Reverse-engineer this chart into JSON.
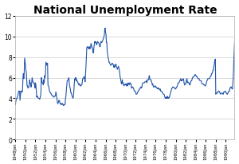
{
  "title": "National Unemployment Rate",
  "title_fontsize": 10,
  "line_color": "#2255AA",
  "line_width": 0.8,
  "background_color": "#ffffff",
  "plot_bg_color": "#ffffff",
  "ylim": [
    0,
    12
  ],
  "yticks": [
    0,
    2,
    4,
    6,
    8,
    10,
    12
  ],
  "gridcolor": "#cccccc",
  "start_year": 1948,
  "x_tick_every": 24,
  "unemployment": [
    3.4,
    3.7,
    3.9,
    4.0,
    4.0,
    4.2,
    4.3,
    4.5,
    4.7,
    4.7,
    4.7,
    3.8,
    4.3,
    4.7,
    4.6,
    4.7,
    4.6,
    4.7,
    5.9,
    6.4,
    5.9,
    6.4,
    7.9,
    7.6,
    7.3,
    6.7,
    6.6,
    5.8,
    5.2,
    5.2,
    5.0,
    5.0,
    5.1,
    5.3,
    5.8,
    5.5,
    5.5,
    5.1,
    5.1,
    5.5,
    6.0,
    5.8,
    5.6,
    5.5,
    5.5,
    5.5,
    5.2,
    5.0,
    5.5,
    5.3,
    4.8,
    4.1,
    4.2,
    4.2,
    4.1,
    4.0,
    4.0,
    4.0,
    3.9,
    4.0,
    4.2,
    4.4,
    6.0,
    5.9,
    5.5,
    5.5,
    5.4,
    5.3,
    5.8,
    5.5,
    6.2,
    6.0,
    6.4,
    7.5,
    7.2,
    7.4,
    7.3,
    7.4,
    5.3,
    5.2,
    5.1,
    4.8,
    4.7,
    4.6,
    4.5,
    4.5,
    4.4,
    4.3,
    4.3,
    4.2,
    4.2,
    4.2,
    4.1,
    4.2,
    4.2,
    4.2,
    4.3,
    4.6,
    4.4,
    4.1,
    3.8,
    3.5,
    3.5,
    3.6,
    3.8,
    3.8,
    3.7,
    3.5,
    3.4,
    3.5,
    3.5,
    3.4,
    3.4,
    3.5,
    3.4,
    3.3,
    3.3,
    3.4,
    3.4,
    3.4,
    4.0,
    4.2,
    4.8,
    5.2,
    5.7,
    5.7,
    5.8,
    5.9,
    6.0,
    5.5,
    5.2,
    5.0,
    4.8,
    4.5,
    4.5,
    4.3,
    4.2,
    4.1,
    4.0,
    4.2,
    4.7,
    5.4,
    5.9,
    5.8,
    6.0,
    6.0,
    5.7,
    5.8,
    5.6,
    5.6,
    5.5,
    5.4,
    5.3,
    5.4,
    5.4,
    5.2,
    5.2,
    5.2,
    5.3,
    5.3,
    5.5,
    5.9,
    5.9,
    5.9,
    6.1,
    6.1,
    5.9,
    5.6,
    6.3,
    7.1,
    8.1,
    8.9,
    9.0,
    9.0,
    8.9,
    8.8,
    8.8,
    9.0,
    8.8,
    8.8,
    8.9,
    9.3,
    9.2,
    9.0,
    8.9,
    8.8,
    8.4,
    8.4,
    8.9,
    9.2,
    9.5,
    9.4,
    9.5,
    9.4,
    9.2,
    9.2,
    9.4,
    9.5,
    9.4,
    9.4,
    9.3,
    9.2,
    9.0,
    9.0,
    9.3,
    9.5,
    9.4,
    9.4,
    9.5,
    9.6,
    9.7,
    9.8,
    10.0,
    10.1,
    10.7,
    10.8,
    10.4,
    10.2,
    9.4,
    9.4,
    8.5,
    8.3,
    7.9,
    7.8,
    7.5,
    7.5,
    7.4,
    7.3,
    7.2,
    7.2,
    7.3,
    7.3,
    7.4,
    7.3,
    7.3,
    7.2,
    7.0,
    7.2,
    7.0,
    7.2,
    7.3,
    7.3,
    7.1,
    7.0,
    6.8,
    6.9,
    7.0,
    7.1,
    6.9,
    6.7,
    6.4,
    6.0,
    5.9,
    5.6,
    5.4,
    5.4,
    5.8,
    5.5,
    5.5,
    5.3,
    5.2,
    5.3,
    5.3,
    5.4,
    5.3,
    5.4,
    5.2,
    5.3,
    5.4,
    5.2,
    5.5,
    5.4,
    5.4,
    5.3,
    5.5,
    5.5,
    5.4,
    5.4,
    5.0,
    5.0,
    5.1,
    5.1,
    5.0,
    5.0,
    4.8,
    4.7,
    4.7,
    4.7,
    4.6,
    4.4,
    4.4,
    4.4,
    4.5,
    4.6,
    4.7,
    4.7,
    4.8,
    4.9,
    4.9,
    5.0,
    5.1,
    5.1,
    5.0,
    5.1,
    5.4,
    5.5,
    5.5,
    5.5,
    5.5,
    5.5,
    5.6,
    5.6,
    5.6,
    5.6,
    5.7,
    5.5,
    5.8,
    5.8,
    5.8,
    5.8,
    6.1,
    6.2,
    5.8,
    5.8,
    5.8,
    5.8,
    5.6,
    5.5,
    5.3,
    5.4,
    5.2,
    5.1,
    5.2,
    5.1,
    5.1,
    5.1,
    5.2,
    5.1,
    5.0,
    5.0,
    5.0,
    4.9,
    5.0,
    5.0,
    4.9,
    4.9,
    4.8,
    4.9,
    4.7,
    4.7,
    4.7,
    4.6,
    4.6,
    4.5,
    4.4,
    4.4,
    4.4,
    4.3,
    4.1,
    4.0,
    4.1,
    4.0,
    4.1,
    4.0,
    4.2,
    4.0,
    4.1,
    4.0,
    4.1,
    4.1,
    4.3,
    4.4,
    4.6,
    4.7,
    4.9,
    5.0,
    5.0,
    5.1,
    5.1,
    5.1,
    5.0,
    5.0,
    5.0,
    4.9,
    4.9,
    5.0,
    5.1,
    5.1,
    5.2,
    5.4,
    5.5,
    5.5,
    5.5,
    5.6,
    5.7,
    5.8,
    5.9,
    5.7,
    5.8,
    5.7,
    5.8,
    5.8,
    5.9,
    5.8,
    5.5,
    5.3,
    5.3,
    5.4,
    5.4,
    5.6,
    5.8,
    5.9,
    5.5,
    5.6,
    5.5,
    5.5,
    5.5,
    5.3,
    5.3,
    5.4,
    5.6,
    5.7,
    5.7,
    5.8,
    6.0,
    6.0,
    6.1,
    6.1,
    6.1,
    6.2,
    6.3,
    6.3,
    6.2,
    6.2,
    6.1,
    6.1,
    6.0,
    5.9,
    5.9,
    5.9,
    5.9,
    5.8,
    5.7,
    5.7,
    5.7,
    5.7,
    5.5,
    5.4,
    5.4,
    5.4,
    5.4,
    5.3,
    5.3,
    5.3,
    5.2,
    5.2,
    5.3,
    5.4,
    5.6,
    5.7,
    5.8,
    5.9,
    5.9,
    5.9,
    5.9,
    5.9,
    6.0,
    6.1,
    6.2,
    6.2,
    6.4,
    6.4,
    6.5,
    6.7,
    6.7,
    7.0,
    7.2,
    7.5,
    7.7,
    7.8,
    4.4,
    4.5,
    4.5,
    4.5,
    4.5,
    4.6,
    4.7,
    4.7,
    4.7,
    4.6,
    4.5,
    4.5,
    4.4,
    4.5,
    4.5,
    4.5,
    4.5,
    4.4,
    4.4,
    4.6,
    4.6,
    4.6,
    4.7,
    4.7,
    4.6,
    4.5,
    4.5,
    4.4,
    4.4,
    4.5,
    4.6,
    4.7,
    4.7,
    4.7,
    5.0,
    5.0,
    5.1,
    5.1,
    5.0,
    4.9,
    4.9,
    5.5,
    6.3,
    7.3,
    8.3,
    9.5
  ]
}
